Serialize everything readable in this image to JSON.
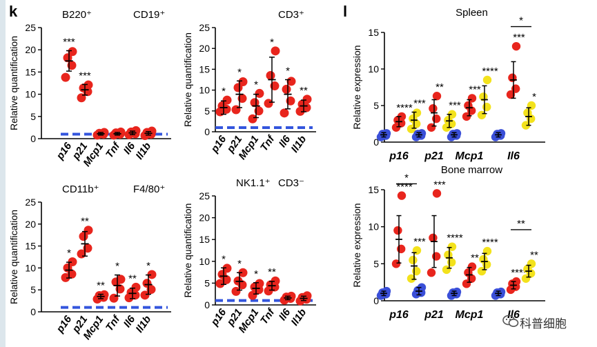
{
  "panel_k_label": "k",
  "panel_l_label": "l",
  "watermark": "科普细胞",
  "colors": {
    "red": "#e8251d",
    "blue": "#3a4fd8",
    "yellow": "#f3e21c",
    "dash": "#3355dd"
  },
  "chart_data": [
    {
      "type": "scatter",
      "panel": "k",
      "title_left": "B220⁺",
      "title_right": "CD19⁺",
      "ylabel": "Relative quantification",
      "ylim": [
        0,
        25
      ],
      "yticks": [
        0,
        5,
        10,
        15,
        20,
        25
      ],
      "categories": [
        "p16",
        "p21",
        "Mcp1",
        "Tnf",
        "Il6",
        "Il1b"
      ],
      "baseline": 1,
      "groups": [
        {
          "points": [
            13.8,
            16.5,
            18.2,
            19.6
          ],
          "mean": 17.5,
          "sd": 2.3,
          "sig": "***"
        },
        {
          "points": [
            9.2,
            10.6,
            11.4,
            12.1
          ],
          "mean": 11.0,
          "sd": 1.2,
          "sig": "***"
        },
        {
          "points": [
            0.8,
            1.0,
            1.2,
            1.4
          ],
          "mean": 1.1,
          "sd": 0.3,
          "sig": ""
        },
        {
          "points": [
            0.8,
            1.0,
            1.3,
            1.5
          ],
          "mean": 1.1,
          "sd": 0.3,
          "sig": ""
        },
        {
          "points": [
            0.9,
            1.1,
            1.5,
            1.8
          ],
          "mean": 1.3,
          "sd": 0.4,
          "sig": ""
        },
        {
          "points": [
            0.7,
            1.0,
            1.4,
            1.7
          ],
          "mean": 1.2,
          "sd": 0.4,
          "sig": ""
        }
      ]
    },
    {
      "type": "scatter",
      "panel": "k",
      "title_left": "",
      "title_right": "CD3⁺",
      "ylabel": "Relative quantification",
      "ylim": [
        0,
        25
      ],
      "yticks": [
        0,
        5,
        10,
        15,
        20,
        25
      ],
      "categories": [
        "p16",
        "p21",
        "Mcp1",
        "Tnf",
        "Il6",
        "Il1b"
      ],
      "baseline": 1,
      "groups": [
        {
          "points": [
            4.8,
            5.4,
            6.2,
            7.6
          ],
          "mean": 5.8,
          "sd": 1.6,
          "sig": "*"
        },
        {
          "points": [
            5.3,
            8.0,
            10.6,
            12.0
          ],
          "mean": 9.0,
          "sd": 3.2,
          "sig": "*"
        },
        {
          "points": [
            3.1,
            5.0,
            7.0,
            9.2
          ],
          "mean": 6.2,
          "sd": 2.8,
          "sig": "*"
        },
        {
          "points": [
            6.8,
            11.0,
            13.5,
            19.4
          ],
          "mean": 12.5,
          "sd": 5.4,
          "sig": "*"
        },
        {
          "points": [
            4.5,
            7.4,
            10.2,
            12.1
          ],
          "mean": 9.0,
          "sd": 3.5,
          "sig": "*"
        },
        {
          "points": [
            4.9,
            5.8,
            6.6,
            7.8
          ],
          "mean": 6.2,
          "sd": 1.4,
          "sig": "**"
        }
      ]
    },
    {
      "type": "scatter",
      "panel": "k",
      "title_left": "CD11b⁺",
      "title_right": "F4/80⁺",
      "ylabel": "Relative quantification",
      "ylim": [
        0,
        25
      ],
      "yticks": [
        0,
        5,
        10,
        15,
        20,
        25
      ],
      "categories": [
        "p16",
        "p21",
        "Mcp1",
        "Tnf",
        "Il6",
        "Il1b"
      ],
      "baseline": 1,
      "groups": [
        {
          "points": [
            7.8,
            8.6,
            10.0,
            11.4
          ],
          "mean": 9.5,
          "sd": 1.8,
          "sig": "*"
        },
        {
          "points": [
            13.2,
            14.5,
            17.2,
            18.6
          ],
          "mean": 15.5,
          "sd": 2.8,
          "sig": "**"
        },
        {
          "points": [
            2.9,
            3.3,
            3.7,
            3.9
          ],
          "mean": 3.5,
          "sd": 0.5,
          "sig": "**"
        },
        {
          "points": [
            3.1,
            5.2,
            6.8,
            7.4
          ],
          "mean": 6.0,
          "sd": 2.4,
          "sig": "*"
        },
        {
          "points": [
            3.2,
            3.8,
            4.4,
            5.6
          ],
          "mean": 4.2,
          "sd": 1.2,
          "sig": "**"
        },
        {
          "points": [
            3.8,
            5.1,
            6.5,
            8.5
          ],
          "mean": 6.2,
          "sd": 2.2,
          "sig": "*"
        }
      ]
    },
    {
      "type": "scatter",
      "panel": "k",
      "title_left": "NK1.1⁺",
      "title_right": "CD3⁻",
      "ylabel": "Relative quantification",
      "ylim": [
        0,
        25
      ],
      "yticks": [
        0,
        5,
        10,
        15,
        20,
        25
      ],
      "categories": [
        "p16",
        "p21",
        "Mcp1",
        "Tnf",
        "Il6",
        "Il1b"
      ],
      "baseline": 1,
      "groups": [
        {
          "points": [
            4.9,
            5.8,
            7.0,
            8.4
          ],
          "mean": 6.6,
          "sd": 1.9,
          "sig": "*"
        },
        {
          "points": [
            3.1,
            4.6,
            5.5,
            7.4
          ],
          "mean": 5.4,
          "sd": 2.0,
          "sig": "*"
        },
        {
          "points": [
            2.2,
            3.5,
            4.1,
            4.9
          ],
          "mean": 3.8,
          "sd": 1.3,
          "sig": "*"
        },
        {
          "points": [
            3.2,
            4.1,
            4.6,
            5.5
          ],
          "mean": 4.4,
          "sd": 1.0,
          "sig": "**"
        },
        {
          "points": [
            1.1,
            1.5,
            1.8,
            2.0
          ],
          "mean": 1.6,
          "sd": 0.4,
          "sig": ""
        },
        {
          "points": [
            0.9,
            1.3,
            1.7,
            2.1
          ],
          "mean": 1.5,
          "sd": 0.5,
          "sig": ""
        }
      ]
    },
    {
      "type": "scatter",
      "panel": "l",
      "title": "Spleen",
      "ylabel": "Relative expression",
      "ylim": [
        0,
        15
      ],
      "yticks": [
        0,
        5,
        10,
        15
      ],
      "categories": [
        "p16",
        "p21",
        "Mcp1",
        "Il6"
      ],
      "clusters": [
        [
          {
            "color": "blue",
            "points": [
              0.7,
              0.9,
              1.1,
              1.2
            ],
            "mean": 1.0,
            "sd": 0.3,
            "sig": ""
          },
          {
            "color": "red",
            "points": [
              2.0,
              2.6,
              3.0,
              3.5
            ],
            "mean": 2.8,
            "sd": 0.7,
            "sig": "****"
          },
          {
            "color": "yellow",
            "points": [
              1.8,
              2.5,
              3.2,
              4.0
            ],
            "mean": 3.0,
            "sd": 1.1,
            "sig": "***"
          }
        ],
        [
          {
            "color": "blue",
            "points": [
              0.7,
              0.9,
              1.1,
              1.2
            ],
            "mean": 1.0,
            "sd": 0.3,
            "sig": ""
          },
          {
            "color": "red",
            "points": [
              2.0,
              3.2,
              4.6,
              6.3
            ],
            "mean": 4.0,
            "sd": 1.8,
            "sig": "**"
          },
          {
            "color": "yellow",
            "points": [
              2.0,
              2.5,
              3.0,
              3.8
            ],
            "mean": 2.9,
            "sd": 0.9,
            "sig": "***"
          }
        ],
        [
          {
            "color": "blue",
            "points": [
              0.7,
              0.9,
              1.1,
              1.2
            ],
            "mean": 1.0,
            "sd": 0.3,
            "sig": ""
          },
          {
            "color": "red",
            "points": [
              3.5,
              4.3,
              5.0,
              6.0
            ],
            "mean": 4.7,
            "sd": 1.1,
            "sig": "***"
          },
          {
            "color": "yellow",
            "points": [
              3.7,
              4.8,
              6.2,
              8.5
            ],
            "mean": 5.8,
            "sd": 1.9,
            "sig": "****"
          }
        ],
        [
          {
            "color": "blue",
            "points": [
              0.7,
              0.9,
              1.1,
              1.2
            ],
            "mean": 1.0,
            "sd": 0.3,
            "sig": ""
          },
          {
            "color": "red",
            "points": [
              6.5,
              7.3,
              8.8,
              13.1
            ],
            "mean": 8.5,
            "sd": 2.5,
            "sig": "***"
          },
          {
            "color": "yellow",
            "points": [
              2.3,
              3.2,
              4.0,
              5.0
            ],
            "mean": 3.5,
            "sd": 1.2,
            "sig": "*"
          }
        ]
      ],
      "brackets": [
        {
          "cluster": 3,
          "from": 1,
          "to": 2,
          "y": 15.8,
          "label": "*"
        }
      ]
    },
    {
      "type": "scatter",
      "panel": "l",
      "title": "Bone marrow",
      "ylabel": "Relative expression",
      "ylim": [
        0,
        15
      ],
      "yticks": [
        0,
        5,
        10,
        15
      ],
      "categories": [
        "p16",
        "p21",
        "Mcp1",
        "Il6"
      ],
      "clusters": [
        [
          {
            "color": "blue",
            "points": [
              0.7,
              0.9,
              1.1,
              1.3
            ],
            "mean": 1.0,
            "sd": 0.3,
            "sig": ""
          },
          {
            "color": "red",
            "points": [
              5.0,
              7.0,
              9.5,
              14.2
            ],
            "mean": 8.3,
            "sd": 3.2,
            "sig": "****"
          },
          {
            "color": "yellow",
            "points": [
              3.0,
              4.0,
              5.5,
              6.8
            ],
            "mean": 4.7,
            "sd": 1.8,
            "sig": "***"
          }
        ],
        [
          {
            "color": "blue",
            "points": [
              0.9,
              1.1,
              1.4,
              1.8
            ],
            "mean": 1.3,
            "sd": 0.5,
            "sig": ""
          },
          {
            "color": "red",
            "points": [
              3.8,
              6.0,
              8.5,
              14.5
            ],
            "mean": 8.0,
            "sd": 3.5,
            "sig": "***"
          },
          {
            "color": "yellow",
            "points": [
              4.2,
              5.2,
              6.2,
              7.3
            ],
            "mean": 5.8,
            "sd": 1.4,
            "sig": "****"
          }
        ],
        [
          {
            "color": "blue",
            "points": [
              0.7,
              0.9,
              1.1,
              1.2
            ],
            "mean": 1.0,
            "sd": 0.3,
            "sig": ""
          },
          {
            "color": "red",
            "points": [
              2.3,
              3.0,
              3.8,
              4.6
            ],
            "mean": 3.5,
            "sd": 1.0,
            "sig": "**"
          },
          {
            "color": "yellow",
            "points": [
              4.0,
              4.9,
              5.6,
              6.7
            ],
            "mean": 5.3,
            "sd": 1.1,
            "sig": "****"
          }
        ],
        [
          {
            "color": "blue",
            "points": [
              0.7,
              0.9,
              1.1,
              1.2
            ],
            "mean": 1.0,
            "sd": 0.3,
            "sig": ""
          },
          {
            "color": "red",
            "points": [
              1.5,
              1.9,
              2.3,
              2.6
            ],
            "mean": 2.1,
            "sd": 0.5,
            "sig": "****"
          },
          {
            "color": "yellow",
            "points": [
              3.0,
              3.7,
              4.3,
              5.0
            ],
            "mean": 4.0,
            "sd": 0.8,
            "sig": "**"
          }
        ]
      ],
      "brackets": [
        {
          "cluster": 0,
          "from": 1,
          "to": 2,
          "y": 15.8,
          "label": "*"
        },
        {
          "cluster": 3,
          "from": 1,
          "to": 2,
          "y": 9.6,
          "label": "**"
        }
      ]
    }
  ]
}
